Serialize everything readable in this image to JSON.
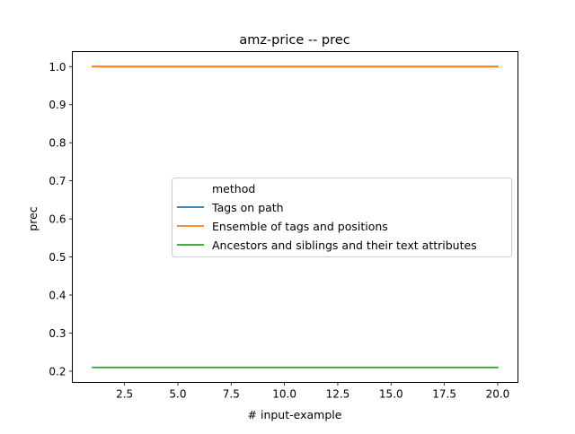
{
  "chart_data": {
    "type": "line",
    "title": "amz-price -- prec",
    "xlabel": "# input-example",
    "ylabel": "prec",
    "xlim": [
      0.05,
      20.95
    ],
    "ylim": [
      0.1705,
      1.0395
    ],
    "xticks": [
      2.5,
      5.0,
      7.5,
      10.0,
      12.5,
      15.0,
      17.5,
      20.0
    ],
    "xtick_labels": [
      "2.5",
      "5.0",
      "7.5",
      "10.0",
      "12.5",
      "15.0",
      "17.5",
      "20.0"
    ],
    "yticks": [
      0.2,
      0.3,
      0.4,
      0.5,
      0.6,
      0.7,
      0.8,
      0.9,
      1.0
    ],
    "ytick_labels": [
      "0.2",
      "0.3",
      "0.4",
      "0.5",
      "0.6",
      "0.7",
      "0.8",
      "0.9",
      "1.0"
    ],
    "grid": false,
    "legend": {
      "title": "method",
      "placement": "center-right"
    },
    "series": [
      {
        "name": "Tags on path",
        "color": "#1f77b4",
        "x": [
          1,
          20
        ],
        "y": [
          1.0,
          1.0
        ]
      },
      {
        "name": "Ensemble of tags and positions",
        "color": "#ff7f0e",
        "x": [
          1,
          20
        ],
        "y": [
          1.0,
          1.0
        ]
      },
      {
        "name": "Ancestors and siblings and their text attributes",
        "color": "#2ca02c",
        "x": [
          1,
          20
        ],
        "y": [
          0.21,
          0.21
        ]
      }
    ]
  }
}
